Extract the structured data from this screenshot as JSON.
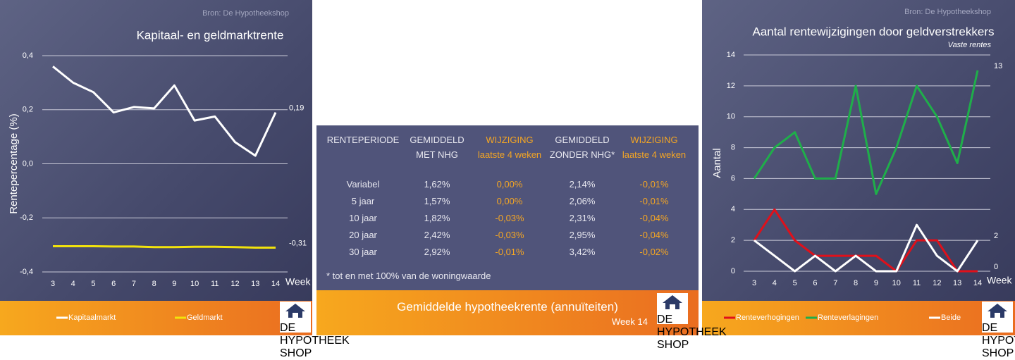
{
  "chart_data": [
    {
      "type": "line",
      "source": "Bron: De Hypotheekshop",
      "title": "Kapitaal- en geldmarktrente",
      "y_label": "Rentepercentage (%)",
      "x_label": "Week",
      "categories": [
        "3",
        "4",
        "5",
        "6",
        "7",
        "8",
        "9",
        "10",
        "11",
        "12",
        "13",
        "14"
      ],
      "ylim": [
        -0.4,
        0.4
      ],
      "yticks": [
        {
          "value": -0.4,
          "label": "-0,4"
        },
        {
          "value": -0.2,
          "label": "-0,2"
        },
        {
          "value": 0,
          "label": "0,0"
        },
        {
          "value": 0.2,
          "label": "0,2"
        },
        {
          "value": 0.4,
          "label": "0,4"
        }
      ],
      "grid": true,
      "legend": "bottom",
      "series": [
        {
          "name": "Kapitaalmarkt",
          "color": "#ffffff",
          "values": [
            0.36,
            0.3,
            0.265,
            0.19,
            0.21,
            0.205,
            0.29,
            0.16,
            0.175,
            0.08,
            0.03,
            0.19
          ],
          "value_labels": [
            null,
            null,
            null,
            null,
            null,
            null,
            null,
            null,
            null,
            null,
            null,
            "0,19"
          ]
        },
        {
          "name": "Geldmarkt",
          "color": "#f2e30c",
          "values": [
            -0.305,
            -0.305,
            -0.305,
            -0.306,
            -0.306,
            -0.308,
            -0.308,
            -0.307,
            -0.307,
            -0.308,
            -0.31,
            -0.31
          ],
          "value_labels": [
            null,
            null,
            null,
            null,
            null,
            null,
            null,
            null,
            null,
            null,
            null,
            "-0,31"
          ]
        }
      ]
    },
    {
      "type": "line",
      "source": "Bron: De Hypotheekshop",
      "title": "Aantal rentewijzigingen door geldverstrekkers",
      "subtitle": "Vaste rentes",
      "y_label": "Aantal",
      "x_label": "Week",
      "categories": [
        "3",
        "4",
        "5",
        "6",
        "7",
        "8",
        "9",
        "10",
        "11",
        "12",
        "13",
        "14"
      ],
      "ylim": [
        0,
        14
      ],
      "yticks": [
        0,
        2,
        4,
        6,
        8,
        10,
        12,
        14
      ],
      "grid": true,
      "legend": "bottom",
      "series": [
        {
          "name": "Renteverhogingen",
          "color": "#e0101a",
          "values": [
            2,
            4,
            2,
            1,
            1,
            1,
            1,
            0,
            2,
            2,
            0,
            0
          ],
          "value_labels": [
            null,
            null,
            null,
            null,
            null,
            null,
            null,
            null,
            null,
            null,
            null,
            "0"
          ]
        },
        {
          "name": "Renteverlagingen",
          "color": "#1fae4a",
          "values": [
            6,
            8,
            9,
            6,
            6,
            12,
            5,
            8,
            12,
            10,
            7,
            13
          ],
          "value_labels": [
            null,
            null,
            null,
            null,
            null,
            null,
            null,
            null,
            null,
            null,
            null,
            "13"
          ]
        },
        {
          "name": "Beide",
          "color": "#ffffff",
          "values": [
            2,
            1,
            0,
            1,
            0,
            1,
            0,
            0,
            3,
            1,
            0,
            2
          ],
          "value_labels": [
            null,
            null,
            null,
            null,
            null,
            null,
            null,
            null,
            null,
            null,
            null,
            "2"
          ]
        }
      ]
    }
  ],
  "table": {
    "columns": [
      [
        "RENTEPERIODE"
      ],
      [
        "GEMIDDELD",
        "MET NHG"
      ],
      [
        "WIJZIGING",
        "laatste 4 weken"
      ],
      [
        "GEMIDDELD",
        "ZONDER NHG*"
      ],
      [
        "WIJZIGING",
        "laatste 4 weken"
      ]
    ],
    "rows": [
      [
        "Variabel",
        "1,62%",
        "0,00%",
        "2,14%",
        "-0,01%"
      ],
      [
        "5 jaar",
        "1,57%",
        "0,00%",
        "2,06%",
        "-0,01%"
      ],
      [
        "10 jaar",
        "1,82%",
        "-0,03%",
        "2,31%",
        "-0,04%"
      ],
      [
        "20 jaar",
        "2,42%",
        "-0,03%",
        "2,95%",
        "-0,04%"
      ],
      [
        "30 jaar",
        "2,92%",
        "-0,01%",
        "3,42%",
        "-0,02%"
      ]
    ],
    "footnote": "* tot en met 100% van de woningwaarde",
    "title": "Gemiddelde hypotheekrente (annuïteiten)",
    "week": "Week 14"
  },
  "logo": {
    "lines": [
      "DE",
      "HYPOTHEEK",
      "SHOP"
    ]
  }
}
